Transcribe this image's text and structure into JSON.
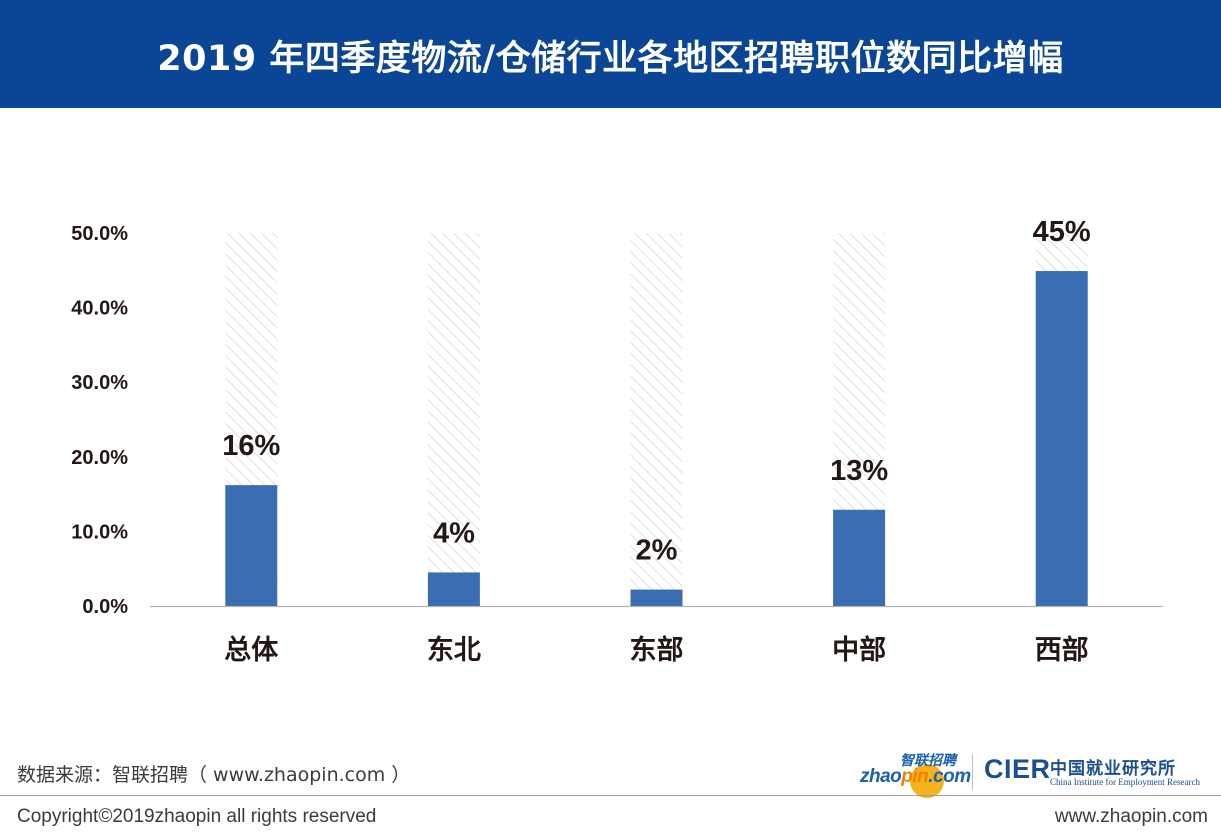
{
  "header": {
    "title": "2019 年四季度物流/仓储行业各地区招聘职位数同比增幅"
  },
  "chart_data": {
    "type": "bar",
    "title": "2019 年四季度物流/仓储行业各地区招聘职位数同比增幅",
    "xlabel": "",
    "ylabel": "",
    "categories": [
      "总体",
      "东北",
      "东部",
      "中部",
      "西部"
    ],
    "values": [
      16.2,
      4.5,
      2.2,
      12.9,
      44.9
    ],
    "data_labels": [
      "16%",
      "4%",
      "2%",
      "13%",
      "45%"
    ],
    "ylim": [
      0,
      50
    ],
    "yticks": [
      0,
      10,
      20,
      30,
      40,
      50
    ],
    "ytick_labels": [
      "0.0%",
      "10.0%",
      "20.0%",
      "30.0%",
      "40.0%",
      "50.0%"
    ],
    "background_bars": "hatched to 50%",
    "grid": false,
    "legend": "none",
    "bar_color": "#3b6db3",
    "hatch_color": "#d9d9d9"
  },
  "footer": {
    "source": "数据来源：智联招聘（ www.zhaopin.com ）",
    "copyright": "Copyright©2019zhaopin all rights reserved",
    "site": "www.zhaopin.com"
  },
  "logos": {
    "zhaopin_cn": "智联招聘",
    "zhaopin_en_prefix": "zhao",
    "zhaopin_en_accent": "pin",
    "zhaopin_en_suffix": ".com",
    "cier": "CIER",
    "cier_cn": "中国就业研究所",
    "cier_en": "China Institute for Employment Research"
  },
  "colors": {
    "header_bg": "#0a4596",
    "header_text": "#ffffff",
    "bar": "#3b6db3",
    "text": "#231815"
  }
}
